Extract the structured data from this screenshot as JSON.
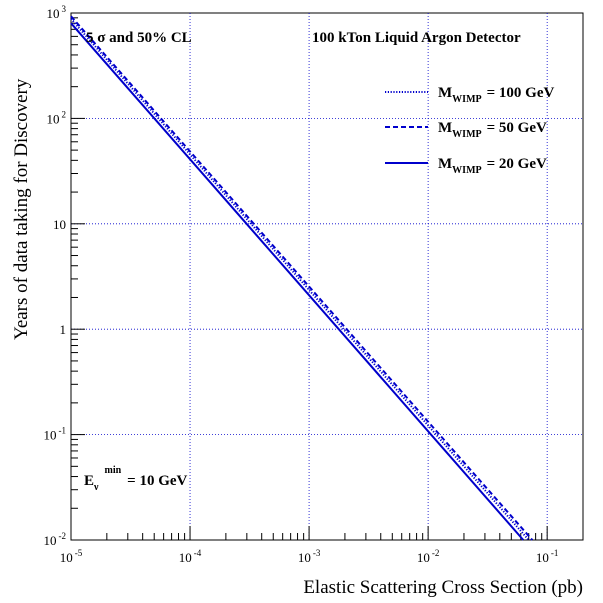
{
  "chart_data": {
    "type": "line",
    "xlabel": "Elastic Scattering Cross Section (pb)",
    "ylabel": "Years of data taking for Discovery",
    "xscale": "log",
    "yscale": "log",
    "xlim": [
      1e-05,
      0.2
    ],
    "ylim": [
      0.01,
      1000
    ],
    "grid": true,
    "x_ticks": [
      {
        "value": 1e-05,
        "base": "10",
        "exp": "-5"
      },
      {
        "value": 0.0001,
        "base": "10",
        "exp": "-4"
      },
      {
        "value": 0.001,
        "base": "10",
        "exp": "-3"
      },
      {
        "value": 0.01,
        "base": "10",
        "exp": "-2"
      },
      {
        "value": 0.1,
        "base": "10",
        "exp": "-1"
      }
    ],
    "y_ticks": [
      {
        "value": 0.01,
        "base": "10",
        "exp": "-2"
      },
      {
        "value": 0.1,
        "base": "10",
        "exp": "-1"
      },
      {
        "value": 1,
        "base": "1",
        "exp": ""
      },
      {
        "value": 10,
        "base": "10",
        "exp": ""
      },
      {
        "value": 100,
        "base": "10",
        "exp": "2"
      },
      {
        "value": 1000,
        "base": "10",
        "exp": "3"
      }
    ],
    "legend_position": "top-right",
    "series": [
      {
        "name": "M_WIMP = 100 GeV",
        "legend_main": "M",
        "legend_sub": "WIMP",
        "legend_tail": "= 100 GeV",
        "style": "dotted",
        "color": "#0000cc",
        "x": [
          1e-05,
          0.07
        ],
        "y": [
          880,
          0.01
        ]
      },
      {
        "name": "M_WIMP = 50 GeV",
        "legend_main": "M",
        "legend_sub": "WIMP",
        "legend_tail": "= 50 GeV",
        "style": "dashed",
        "color": "#0000cc",
        "x": [
          1e-05,
          0.075
        ],
        "y": [
          930,
          0.01
        ]
      },
      {
        "name": "M_WIMP = 20 GeV",
        "legend_main": "M",
        "legend_sub": "WIMP",
        "legend_tail": "= 20 GeV",
        "style": "solid",
        "color": "#0000cc",
        "x": [
          1e-05,
          0.063
        ],
        "y": [
          800,
          0.01
        ]
      }
    ],
    "annotations": {
      "cl_text": "5 σ and 50% CL",
      "detector_text": "100 kTon Liquid Argon Detector",
      "energy_main": "E",
      "energy_sub": "ν",
      "energy_sup": "min",
      "energy_tail": "= 10 GeV"
    }
  }
}
